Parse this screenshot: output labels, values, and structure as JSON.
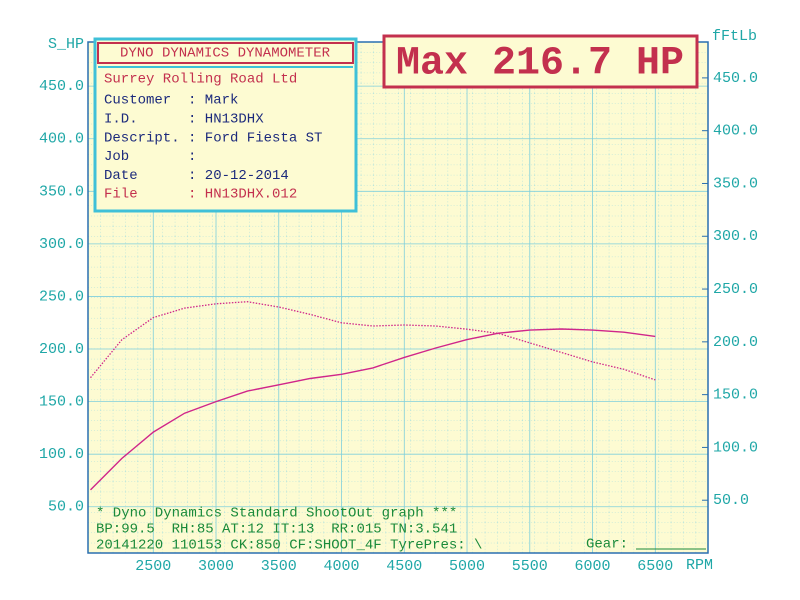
{
  "chart_data": {
    "type": "line",
    "y_label": "S_HP",
    "y2_label": "fFtLb",
    "x_label": "RPM",
    "x": [
      2000,
      2250,
      2500,
      2750,
      3000,
      3250,
      3500,
      3750,
      4000,
      4250,
      4500,
      4750,
      5000,
      5250,
      5500,
      5750,
      6000,
      6250,
      6500
    ],
    "series": [
      {
        "color": "#d0268a",
        "style": "solid",
        "axis": "y",
        "values": [
          66,
          96,
          121,
          139,
          150,
          160,
          166,
          172,
          176,
          182,
          192,
          201,
          209,
          215,
          218,
          219,
          218,
          216,
          212
        ]
      },
      {
        "color": "#d0268a",
        "style": "dotted",
        "axis": "y2",
        "values": [
          166,
          202,
          223,
          232,
          236,
          238,
          233,
          226,
          218,
          215,
          216,
          215,
          212,
          208,
          199,
          190,
          181,
          174,
          164
        ]
      }
    ],
    "xlim": [
      1980,
      6920
    ],
    "xticks": [
      2500,
      3000,
      3500,
      4000,
      4500,
      5000,
      5500,
      6000,
      6500
    ],
    "ylim": [
      6,
      492
    ],
    "yticks": [
      {
        "value": 50,
        "label": "50.0"
      },
      {
        "value": 100,
        "label": "100.0"
      },
      {
        "value": 150,
        "label": "150.0"
      },
      {
        "value": 200,
        "label": "200.0"
      },
      {
        "value": 250,
        "label": "250.0"
      },
      {
        "value": 300,
        "label": "300.0"
      },
      {
        "value": 350,
        "label": "350.0"
      },
      {
        "value": 400,
        "label": "400.0"
      },
      {
        "value": 450,
        "label": "450.0"
      }
    ],
    "y2lim": [
      0,
      484
    ],
    "y2ticks": [
      {
        "value": 50,
        "label": "50.0"
      },
      {
        "value": 100,
        "label": "100.0"
      },
      {
        "value": 150,
        "label": "150.0"
      },
      {
        "value": 200,
        "label": "200.0"
      },
      {
        "value": 250,
        "label": "250.0"
      },
      {
        "value": 300,
        "label": "300.0"
      },
      {
        "value": 350,
        "label": "350.0"
      },
      {
        "value": 400,
        "label": "400.0"
      },
      {
        "value": 450,
        "label": "450.0"
      }
    ],
    "grid": true,
    "max_label": "Max 216.7 HP",
    "info": {
      "title": "DYNO DYNAMICS DYNAMOMETER",
      "company": "Surrey Rolling Road Ltd",
      "rows": [
        {
          "label": "Customer",
          "value": ": Mark"
        },
        {
          "label": "I.D.",
          "value": ": HN13DHX"
        },
        {
          "label": "Descript.",
          "value": ": Ford Fiesta ST"
        },
        {
          "label": "Job",
          "value": ":"
        },
        {
          "label": "Date",
          "value": ": 20-12-2014"
        },
        {
          "label": "File",
          "value": ": HN13DHX.012"
        }
      ]
    },
    "footer": [
      "* Dyno Dynamics Standard ShootOut graph ***",
      "BP:99.5  RH:85 AT:12 IT:13  RR:015 TN:3.541",
      "20141220 110153 CK:850 CF:SHOOT_4F TyrePres: \\"
    ],
    "gear_label": "Gear:"
  }
}
